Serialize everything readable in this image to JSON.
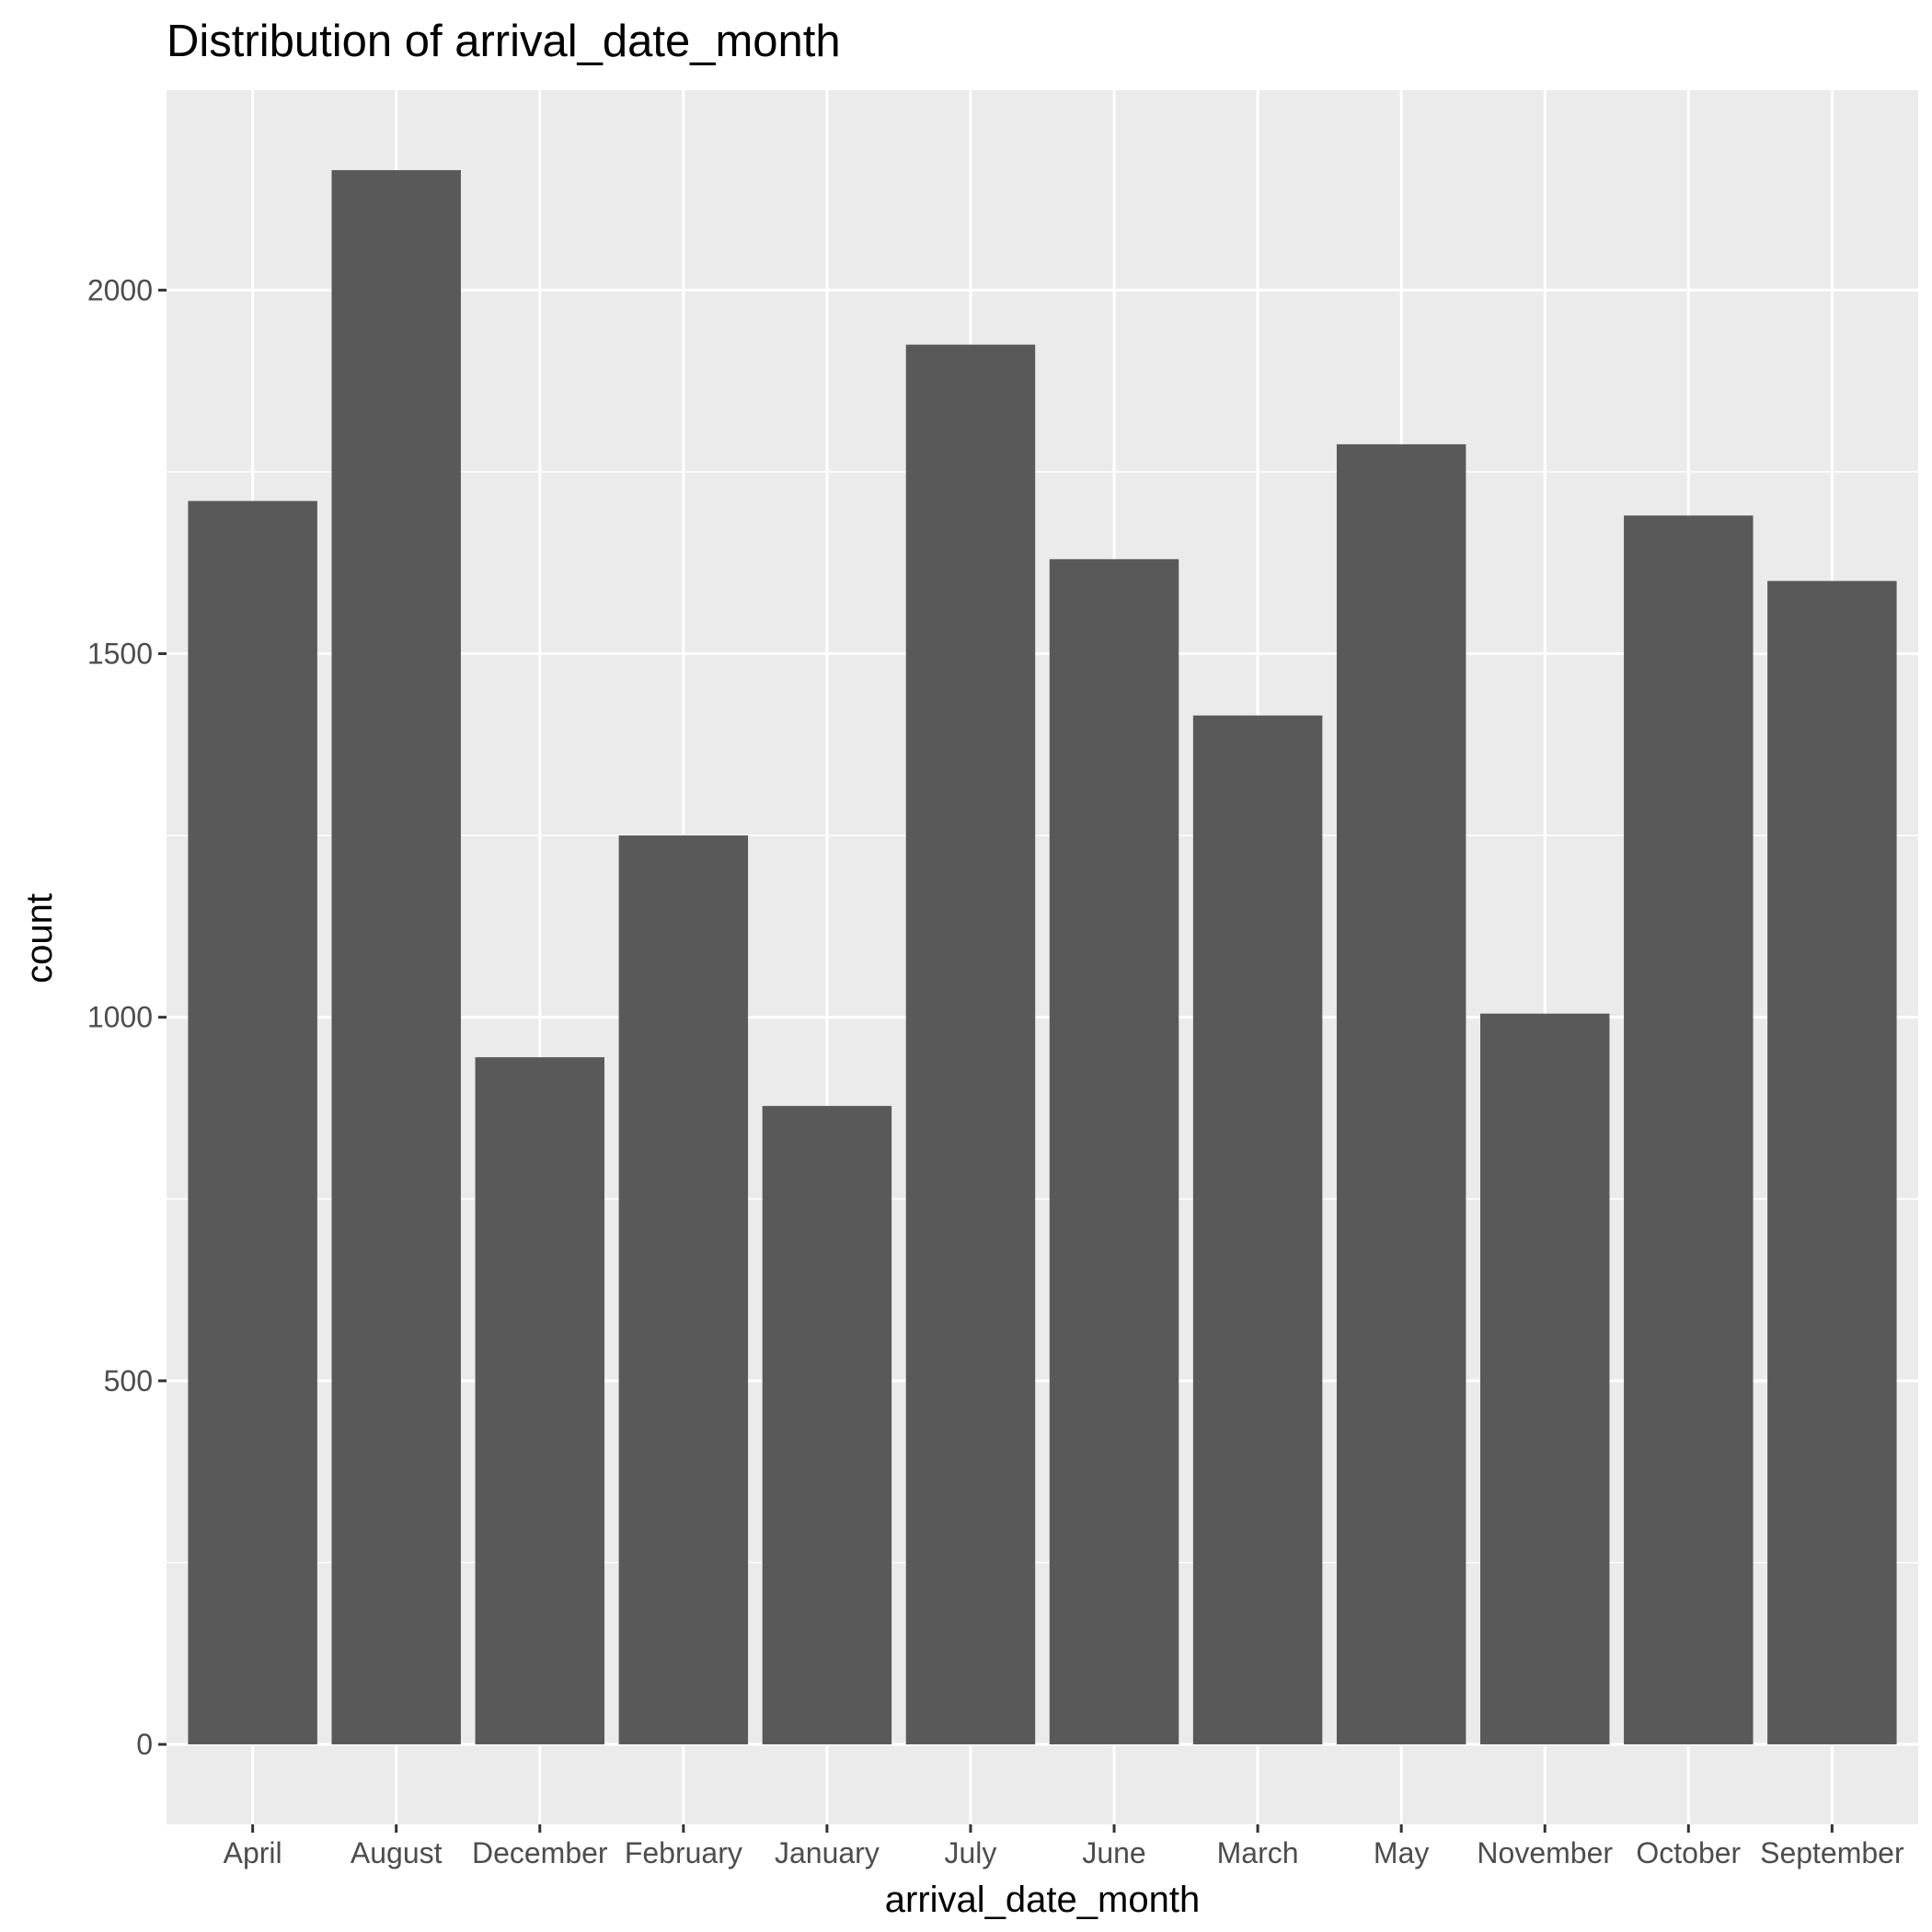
{
  "chart_data": {
    "type": "bar",
    "title": "Distribution of arrival_date_month",
    "xlabel": "arrival_date_month",
    "ylabel": "count",
    "categories": [
      "April",
      "August",
      "December",
      "February",
      "January",
      "July",
      "June",
      "March",
      "May",
      "November",
      "October",
      "September"
    ],
    "values": [
      1710,
      2165,
      945,
      1250,
      878,
      1925,
      1630,
      1415,
      1788,
      1005,
      1690,
      1600
    ],
    "ylim": [
      -110,
      2275
    ],
    "yticks": [
      0,
      500,
      1000,
      1500,
      2000
    ],
    "ytick_labels": [
      "0",
      "500",
      "1000",
      "1500",
      "2000"
    ],
    "grid": true,
    "legend": "none",
    "colors": {
      "bar": "#595959",
      "panel": "#ebebeb",
      "grid": "#ffffff",
      "tick_text": "#4d4d4d",
      "tick_mark": "#333333"
    }
  }
}
